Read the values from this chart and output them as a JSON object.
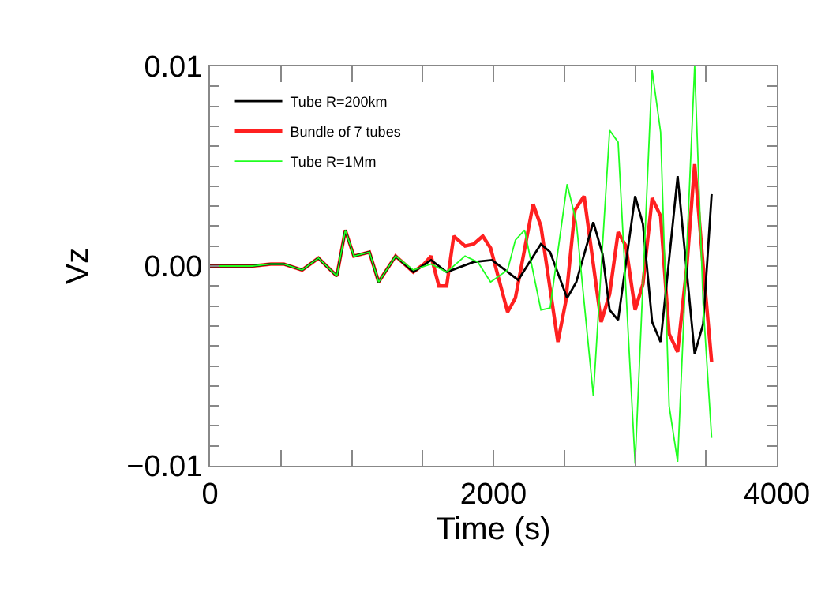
{
  "chart_data": {
    "type": "line",
    "xlabel": "Time (s)",
    "ylabel": "Vz",
    "xlim": [
      0,
      4000
    ],
    "ylim": [
      -0.01,
      0.01
    ],
    "xticks": [
      0,
      {
        "value": 500,
        "label": null
      },
      {
        "value": 1000,
        "label": null
      },
      {
        "value": 1500,
        "label": null
      },
      2000,
      {
        "value": 2500,
        "label": null
      },
      {
        "value": 3000,
        "label": null
      },
      {
        "value": 3500,
        "label": null
      },
      4000
    ],
    "yticks": [
      {
        "value": -0.01,
        "label": "−0.01"
      },
      {
        "value": -0.009,
        "label": null
      },
      {
        "value": -0.008,
        "label": null
      },
      {
        "value": -0.007,
        "label": null
      },
      {
        "value": -0.006,
        "label": null
      },
      {
        "value": -0.005,
        "label": null
      },
      {
        "value": -0.004,
        "label": null
      },
      {
        "value": -0.003,
        "label": null
      },
      {
        "value": -0.002,
        "label": null
      },
      {
        "value": -0.001,
        "label": null
      },
      {
        "value": 0,
        "label": "0.00"
      },
      {
        "value": 0.001,
        "label": null
      },
      {
        "value": 0.002,
        "label": null
      },
      {
        "value": 0.003,
        "label": null
      },
      {
        "value": 0.004,
        "label": null
      },
      {
        "value": 0.005,
        "label": null
      },
      {
        "value": 0.006,
        "label": null
      },
      {
        "value": 0.007,
        "label": null
      },
      {
        "value": 0.008,
        "label": null
      },
      {
        "value": 0.009,
        "label": null
      },
      0.01
    ],
    "legend": "top left",
    "marker": "none",
    "line_style": "solid",
    "series": [
      {
        "name": "Tube R=200km",
        "color": "#000000",
        "x": [
          0,
          300,
          430,
          520,
          650,
          765,
          895,
          955,
          1015,
          1125,
          1190,
          1310,
          1435,
          1560,
          1670,
          1860,
          1990,
          2175,
          2335,
          2400,
          2520,
          2585,
          2705,
          2770,
          2820,
          2880,
          3000,
          3055,
          3120,
          3180,
          3300,
          3420,
          3480,
          3540
        ],
        "values": [
          0,
          0,
          0.0001,
          0.0001,
          -0.0002,
          0.0004,
          -0.0005,
          0.0018,
          0.0005,
          0.0007,
          -0.0008,
          0.0005,
          -0.0003,
          0.0003,
          -0.0003,
          0.0002,
          0.0003,
          -0.0007,
          0.0011,
          0.0007,
          -0.0016,
          -0.0008,
          0.0022,
          0.0006,
          -0.0022,
          -0.0027,
          0.0035,
          0.0021,
          -0.0028,
          -0.0038,
          0.0045,
          -0.0044,
          -0.0029,
          0.0036
        ]
      },
      {
        "name": "Bundle of 7 tubes",
        "color": "#ff2020",
        "x": [
          0,
          300,
          430,
          520,
          650,
          765,
          895,
          955,
          1015,
          1125,
          1190,
          1310,
          1435,
          1510,
          1560,
          1615,
          1670,
          1720,
          1800,
          1860,
          1925,
          1980,
          2100,
          2155,
          2280,
          2335,
          2455,
          2510,
          2575,
          2640,
          2760,
          2820,
          2880,
          2935,
          3000,
          3055,
          3120,
          3180,
          3240,
          3300,
          3365,
          3420,
          3480,
          3540
        ],
        "values": [
          0,
          0,
          0.0001,
          0.0001,
          -0.0002,
          0.0004,
          -0.0005,
          0.0018,
          0.0005,
          0.0007,
          -0.0008,
          0.0005,
          -0.0003,
          0.0001,
          0.0005,
          -0.001,
          -0.001,
          0.0015,
          0.001,
          0.0011,
          0.0015,
          0.0009,
          -0.0023,
          -0.0016,
          0.0031,
          0.002,
          -0.0038,
          -0.0018,
          0.0028,
          0.0035,
          -0.0028,
          -0.0014,
          0.0017,
          0.001,
          -0.0022,
          -0.0009,
          0.0034,
          0.0025,
          -0.0034,
          -0.0043,
          0,
          0.0051,
          0,
          -0.0048
        ]
      },
      {
        "name": "Tube R=1Mm",
        "color": "#20ff20",
        "x": [
          0,
          300,
          430,
          520,
          650,
          765,
          895,
          955,
          1015,
          1125,
          1190,
          1310,
          1435,
          1560,
          1670,
          1800,
          1890,
          1980,
          2100,
          2155,
          2220,
          2335,
          2400,
          2520,
          2585,
          2705,
          2820,
          2880,
          3000,
          3120,
          3180,
          3240,
          3300,
          3420,
          3480,
          3540
        ],
        "values": [
          0,
          0,
          0.0001,
          0.0001,
          -0.0002,
          0.0004,
          -0.0005,
          0.0018,
          0.0005,
          0.0007,
          -0.0008,
          0.0005,
          -0.0002,
          0.0001,
          -0.0003,
          0.0005,
          0.0002,
          -0.0008,
          -0.0002,
          0.0013,
          0.0018,
          -0.0022,
          -0.0021,
          0.0041,
          0.0022,
          -0.0065,
          0.0068,
          0.0062,
          -0.0099,
          0.0098,
          0.0067,
          -0.007,
          -0.0098,
          0.01,
          -0.0019,
          -0.0086
        ]
      }
    ]
  }
}
